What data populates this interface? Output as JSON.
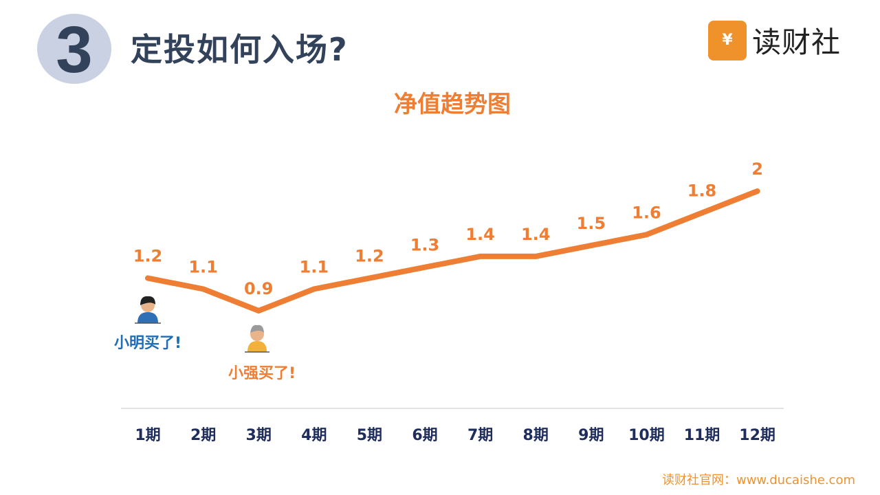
{
  "header": {
    "number": "3",
    "title": "定投如何入场?"
  },
  "logo": {
    "text": "读财社",
    "mark_symbol": "¥"
  },
  "footer": {
    "text": "读财社官网：www.ducaishe.com"
  },
  "colors": {
    "line": "#ee7e33",
    "label": "#ee7e33",
    "axis_text": "#1f2d5c",
    "heading": "#33425b",
    "annotation_blue": "#1f6db4",
    "annotation_orange": "#ee7e33"
  },
  "chart_data": {
    "type": "line",
    "title": "净值趋势图",
    "xlabel": "",
    "ylabel": "",
    "categories": [
      "1期",
      "2期",
      "3期",
      "4期",
      "5期",
      "6期",
      "7期",
      "8期",
      "9期",
      "10期",
      "11期",
      "12期"
    ],
    "series": [
      {
        "values": [
          1.2,
          1.1,
          0.9,
          1.1,
          1.2,
          1.3,
          1.4,
          1.4,
          1.5,
          1.6,
          1.8,
          2
        ],
        "labels": [
          "1.2",
          "1.1",
          "0.9",
          "1.1",
          "1.2",
          "1.3",
          "1.4",
          "1.4",
          "1.5",
          "1.6",
          "1.8",
          "2"
        ]
      }
    ],
    "ylim": [
      0.9,
      2
    ],
    "grid": false,
    "legend": "none",
    "annotations": [
      {
        "text": "小明买了!",
        "category": "1期",
        "color": "blue",
        "icon": "boy-avatar-icon"
      },
      {
        "text": "小强买了!",
        "category": "3期",
        "color": "orange",
        "icon": "old-man-avatar-icon"
      }
    ]
  }
}
